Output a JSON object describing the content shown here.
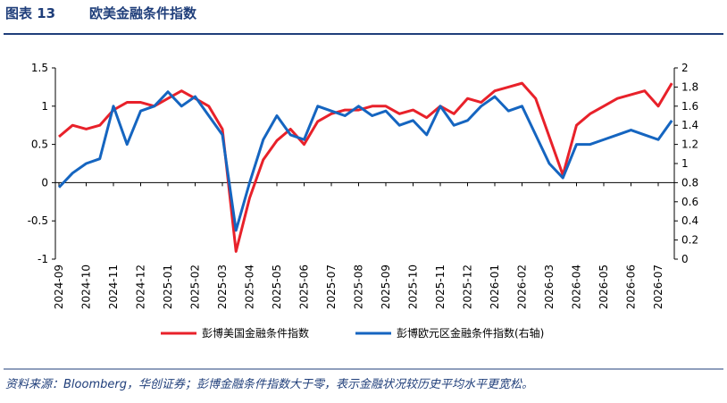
{
  "header": {
    "label": "图表 13",
    "title": "欧美金融条件指数"
  },
  "chart_data": {
    "type": "line",
    "categories": [
      "2024-09",
      null,
      "2024-10",
      null,
      "2024-11",
      null,
      "2024-12",
      null,
      "2025-01",
      null,
      "2025-02",
      null,
      "2025-03",
      null,
      "2025-04",
      null,
      "2025-05",
      null,
      "2025-06",
      null,
      "2025-07",
      null,
      "2025-08",
      null,
      "2025-09",
      null,
      "2025-10",
      null,
      "2025-11",
      null,
      "2025-12",
      null,
      "2026-01",
      null,
      "2026-02",
      null,
      "2026-03",
      null,
      "2026-04",
      null,
      "2026-05",
      null,
      "2026-06",
      null,
      "2026-07",
      null
    ],
    "series": [
      {
        "name": "彭博美国金融条件指数",
        "color": "#e8212a",
        "values": [
          0.6,
          0.75,
          0.7,
          0.75,
          0.95,
          1.05,
          1.05,
          1.0,
          1.1,
          1.2,
          1.1,
          1.0,
          0.7,
          -0.9,
          -0.2,
          0.3,
          0.55,
          0.7,
          0.5,
          0.8,
          0.9,
          0.95,
          0.95,
          1.0,
          1.0,
          0.9,
          0.95,
          0.85,
          1.0,
          0.9,
          1.1,
          1.05,
          1.2,
          1.25,
          1.3,
          1.1,
          0.6,
          0.1,
          0.75,
          0.9,
          1.0,
          1.1,
          1.15,
          1.2,
          1.0,
          1.3
        ]
      },
      {
        "name": "彭博欧元区金融条件指数(右轴)",
        "color": "#1565c0",
        "axis": "y2",
        "values": [
          0.75,
          0.9,
          1.0,
          1.05,
          1.6,
          1.2,
          1.55,
          1.6,
          1.75,
          1.6,
          1.7,
          1.5,
          1.3,
          0.3,
          0.8,
          1.25,
          1.5,
          1.3,
          1.25,
          1.6,
          1.55,
          1.5,
          1.6,
          1.5,
          1.55,
          1.4,
          1.45,
          1.3,
          1.6,
          1.4,
          1.45,
          1.6,
          1.7,
          1.55,
          1.6,
          1.3,
          1.0,
          0.85,
          1.2,
          1.2,
          1.25,
          1.3,
          1.35,
          1.3,
          1.25,
          1.45
        ]
      }
    ],
    "ylim": [
      -1,
      1.5
    ],
    "yticks": [
      -1,
      -0.5,
      0,
      0.5,
      1,
      1.5
    ],
    "y2lim": [
      0,
      2
    ],
    "y2ticks": [
      0,
      0.2,
      0.4,
      0.6,
      0.8,
      1,
      1.2,
      1.4,
      1.6,
      1.8,
      2
    ]
  },
  "source": "资料来源：Bloomberg，华创证券；彭博金融条件指数大于零，表示金融状况较历史平均水平更宽松。"
}
